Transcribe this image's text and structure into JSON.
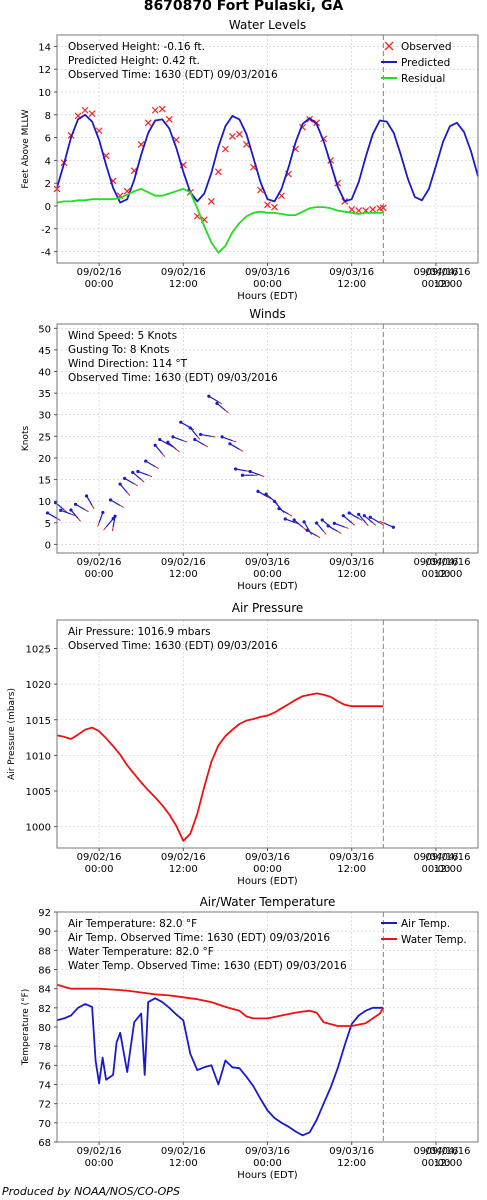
{
  "page_title": "8670870 Fort Pulaski, GA",
  "credit": "Produced by NOAA/NOS/CO-OPS",
  "chart_data": [
    {
      "type": "line",
      "title": "Water Levels",
      "xlabel": "Hours (EDT)",
      "ylabel": "Feet Above MLLW",
      "x_range_hours": [
        -6,
        54
      ],
      "x_ticks": [
        {
          "h": 0,
          "l1": "09/02/16",
          "l2": "00:00"
        },
        {
          "h": 12,
          "l1": "09/02/16",
          "l2": "12:00"
        },
        {
          "h": 24,
          "l1": "09/03/16",
          "l2": "00:00"
        },
        {
          "h": 36,
          "l1": "09/03/16",
          "l2": "12:00"
        },
        {
          "h": 48,
          "l1": "09/04/16",
          "l2": "00:00"
        },
        {
          "h": 60,
          "l1": "09/04/16",
          "l2": "12:00"
        }
      ],
      "now_hour": 40.5,
      "ylim": [
        -5,
        15
      ],
      "yticks": [
        -4,
        -2,
        0,
        2,
        4,
        6,
        8,
        10,
        12,
        14
      ],
      "grid": true,
      "legend_position": "top-right",
      "info_lines": [
        "Observed Height:  -0.16 ft.",
        "Predicted Height:   0.42 ft.",
        "Observed Time: 1630 (EDT) 09/03/2016"
      ],
      "series": [
        {
          "name": "Observed",
          "color": "#ff2020",
          "style": "x",
          "x": [
            -6,
            -5,
            -4,
            -3,
            -2,
            -1,
            0,
            1,
            2,
            3,
            4,
            5,
            6,
            7,
            8,
            9,
            10,
            11,
            12,
            13,
            14,
            15,
            16,
            17,
            18,
            19,
            20,
            21,
            22,
            23,
            24,
            25,
            26,
            27,
            28,
            29,
            30,
            31,
            32,
            33,
            34,
            35,
            36,
            37,
            38,
            39,
            40,
            40.5
          ],
          "y": [
            1.5,
            3.8,
            6.2,
            7.9,
            8.4,
            8.1,
            6.6,
            4.4,
            2.2,
            0.9,
            1.3,
            3.1,
            5.4,
            7.3,
            8.4,
            8.5,
            7.6,
            5.8,
            3.6,
            1.2,
            -0.9,
            -1.2,
            0.4,
            3.0,
            5.0,
            6.1,
            6.3,
            5.4,
            3.4,
            1.4,
            0.1,
            -0.1,
            0.9,
            2.8,
            5.0,
            6.9,
            7.6,
            7.3,
            5.9,
            4.0,
            2.0,
            0.4,
            -0.3,
            -0.4,
            -0.4,
            -0.3,
            -0.2,
            -0.16
          ]
        },
        {
          "name": "Predicted",
          "color": "#1a1acc",
          "style": "line",
          "x": [
            -6,
            -5,
            -4,
            -3,
            -2,
            -1,
            0,
            1,
            2,
            3,
            4,
            5,
            6,
            7,
            8,
            9,
            10,
            11,
            12,
            13,
            14,
            15,
            16,
            17,
            18,
            19,
            20,
            21,
            22,
            23,
            24,
            25,
            26,
            27,
            28,
            29,
            30,
            31,
            32,
            33,
            34,
            35,
            36,
            37,
            38,
            39,
            40,
            41,
            42,
            43,
            44,
            45,
            46,
            47,
            48,
            49,
            50,
            51,
            52,
            53,
            54
          ],
          "y": [
            1.6,
            3.7,
            6.0,
            7.6,
            8.0,
            7.4,
            5.8,
            3.6,
            1.6,
            0.3,
            0.6,
            2.3,
            4.5,
            6.4,
            7.5,
            7.6,
            6.8,
            5.1,
            3.0,
            1.2,
            0.4,
            1.1,
            2.9,
            5.2,
            7.0,
            7.9,
            7.6,
            6.3,
            4.2,
            2.1,
            0.6,
            0.4,
            1.5,
            3.4,
            5.6,
            7.2,
            7.7,
            7.2,
            5.7,
            3.7,
            1.7,
            0.4,
            0.6,
            2.1,
            4.3,
            6.3,
            7.5,
            7.4,
            6.4,
            4.5,
            2.4,
            0.8,
            0.5,
            1.5,
            3.5,
            5.6,
            7.0,
            7.3,
            6.5,
            4.8,
            2.6
          ]
        },
        {
          "name": "Residual",
          "color": "#22dd22",
          "style": "line",
          "x": [
            -6,
            -5,
            -4,
            -3,
            -2,
            -1,
            0,
            1,
            2,
            3,
            4,
            5,
            6,
            7,
            8,
            9,
            10,
            11,
            12,
            13,
            14,
            15,
            16,
            17,
            18,
            19,
            20,
            21,
            22,
            23,
            24,
            25,
            26,
            27,
            28,
            29,
            30,
            31,
            32,
            33,
            34,
            35,
            36,
            37,
            38,
            39,
            40,
            40.5
          ],
          "y": [
            0.3,
            0.4,
            0.4,
            0.5,
            0.5,
            0.6,
            0.6,
            0.6,
            0.6,
            0.7,
            1.0,
            1.3,
            1.5,
            1.2,
            0.9,
            0.9,
            1.1,
            1.3,
            1.5,
            1.2,
            -0.2,
            -1.8,
            -3.2,
            -4.1,
            -3.5,
            -2.3,
            -1.5,
            -0.9,
            -0.6,
            -0.5,
            -0.6,
            -0.6,
            -0.7,
            -0.8,
            -0.8,
            -0.5,
            -0.2,
            -0.1,
            -0.1,
            -0.2,
            -0.4,
            -0.5,
            -0.6,
            -0.7,
            -0.6,
            -0.6,
            -0.6,
            -0.58
          ]
        }
      ]
    },
    {
      "type": "scatter",
      "title": "Winds",
      "xlabel": "Hours (EDT)",
      "ylabel": "Knots",
      "x_range_hours": [
        -6,
        54
      ],
      "x_ticks": [
        {
          "h": 0,
          "l1": "09/02/16",
          "l2": "00:00"
        },
        {
          "h": 12,
          "l1": "09/02/16",
          "l2": "12:00"
        },
        {
          "h": 24,
          "l1": "09/03/16",
          "l2": "00:00"
        },
        {
          "h": 36,
          "l1": "09/03/16",
          "l2": "12:00"
        },
        {
          "h": 48,
          "l1": "09/04/16",
          "l2": "00:00"
        },
        {
          "h": 60,
          "l1": "09/04/16",
          "l2": "12:00"
        }
      ],
      "now_hour": 40.5,
      "ylim": [
        -2,
        51
      ],
      "yticks": [
        0,
        5,
        10,
        15,
        20,
        25,
        30,
        35,
        40,
        45,
        50
      ],
      "grid": true,
      "info_lines": [
        "Wind Speed: 5 Knots",
        "Gusting To: 8 Knots",
        "Wind Direction: 114 °T",
        "Observed Time: 1630 (EDT) 09/03/2016"
      ],
      "series": [
        {
          "name": "Wind",
          "color": "#1a1acc",
          "style": "arrow",
          "x": [
            -6,
            -5,
            -4,
            -3,
            -2,
            -1,
            0,
            1,
            2,
            3,
            4,
            5,
            6,
            7,
            8,
            9,
            10,
            11,
            12,
            13,
            14,
            15,
            16,
            17,
            18,
            19,
            20,
            21,
            22,
            23,
            24,
            25,
            26,
            27,
            28,
            29,
            30,
            31,
            32,
            33,
            34,
            35,
            36,
            37,
            38,
            39,
            40,
            40.5
          ],
          "y": [
            6,
            8,
            7,
            6,
            8,
            9,
            5,
            4,
            4,
            9,
            12,
            14,
            15,
            16,
            18,
            21,
            23,
            22,
            24,
            27,
            25,
            23,
            25,
            33,
            31,
            24,
            22,
            17,
            16,
            16,
            11,
            10,
            8,
            7,
            5,
            4,
            3,
            2,
            3,
            4,
            3,
            4,
            5,
            6,
            5,
            5,
            5,
            5
          ],
          "dir": [
            300,
            310,
            290,
            320,
            300,
            330,
            20,
            40,
            10,
            300,
            320,
            300,
            310,
            290,
            300,
            320,
            300,
            310,
            290,
            300,
            320,
            300,
            280,
            300,
            310,
            290,
            300,
            280,
            270,
            290,
            300,
            310,
            320,
            300,
            290,
            310,
            330,
            300,
            320,
            310,
            300,
            290,
            310,
            300,
            320,
            310,
            300,
            114
          ]
        }
      ]
    },
    {
      "type": "line",
      "title": "Air Pressure",
      "xlabel": "Hours (EDT)",
      "ylabel": "Air Pressure (mbars)",
      "x_range_hours": [
        -6,
        54
      ],
      "x_ticks": [
        {
          "h": 0,
          "l1": "09/02/16",
          "l2": "00:00"
        },
        {
          "h": 12,
          "l1": "09/02/16",
          "l2": "12:00"
        },
        {
          "h": 24,
          "l1": "09/03/16",
          "l2": "00:00"
        },
        {
          "h": 36,
          "l1": "09/03/16",
          "l2": "12:00"
        },
        {
          "h": 48,
          "l1": "09/04/16",
          "l2": "00:00"
        },
        {
          "h": 60,
          "l1": "09/04/16",
          "l2": "12:00"
        }
      ],
      "now_hour": 40.5,
      "ylim": [
        997,
        1029
      ],
      "yticks": [
        1000,
        1005,
        1010,
        1015,
        1020,
        1025
      ],
      "grid": true,
      "info_lines": [
        "Air Pressure: 1016.9 mbars",
        "Observed Time: 1630 (EDT) 09/03/2016"
      ],
      "series": [
        {
          "name": "Air Pressure",
          "color": "#ee1111",
          "style": "line",
          "x": [
            -6,
            -5,
            -4,
            -3,
            -2,
            -1,
            0,
            1,
            2,
            3,
            4,
            5,
            6,
            7,
            8,
            9,
            10,
            11,
            12,
            13,
            14,
            15,
            16,
            17,
            18,
            19,
            20,
            21,
            22,
            23,
            24,
            25,
            26,
            27,
            28,
            29,
            30,
            31,
            32,
            33,
            34,
            35,
            36,
            37,
            38,
            39,
            40,
            40.5
          ],
          "y": [
            1012.8,
            1012.6,
            1012.3,
            1012.9,
            1013.6,
            1013.9,
            1013.4,
            1012.4,
            1011.3,
            1010.1,
            1008.6,
            1007.4,
            1006.2,
            1005.1,
            1004.1,
            1003.0,
            1001.7,
            1000.1,
            998.0,
            999.0,
            1001.8,
            1005.6,
            1009.1,
            1011.4,
            1012.7,
            1013.6,
            1014.4,
            1014.9,
            1015.1,
            1015.4,
            1015.6,
            1016.0,
            1016.6,
            1017.2,
            1017.8,
            1018.3,
            1018.5,
            1018.7,
            1018.5,
            1018.2,
            1017.6,
            1017.1,
            1016.9,
            1016.9,
            1016.9,
            1016.9,
            1016.9,
            1016.9
          ]
        }
      ]
    },
    {
      "type": "line",
      "title": "Air/Water Temperature",
      "xlabel": "Hours (EDT)",
      "ylabel": "Temperature (°F)",
      "x_range_hours": [
        -6,
        54
      ],
      "x_ticks": [
        {
          "h": 0,
          "l1": "09/02/16",
          "l2": "00:00"
        },
        {
          "h": 12,
          "l1": "09/02/16",
          "l2": "12:00"
        },
        {
          "h": 24,
          "l1": "09/03/16",
          "l2": "00:00"
        },
        {
          "h": 36,
          "l1": "09/03/16",
          "l2": "12:00"
        },
        {
          "h": 48,
          "l1": "09/04/16",
          "l2": "00:00"
        },
        {
          "h": 60,
          "l1": "09/04/16",
          "l2": "12:00"
        }
      ],
      "now_hour": 40.5,
      "ylim": [
        68,
        92
      ],
      "yticks": [
        68,
        70,
        72,
        74,
        76,
        78,
        80,
        82,
        84,
        86,
        88,
        90,
        92
      ],
      "grid": true,
      "legend_position": "top-right",
      "info_lines": [
        "Air Temperature:  82.0 °F",
        "Air Temp. Observed Time: 1630 (EDT) 09/03/2016",
        "Water Temperature:  82.0 °F",
        "Water Temp. Observed Time: 1630 (EDT) 09/03/2016"
      ],
      "series": [
        {
          "name": "Air Temp.",
          "color": "#1a1acc",
          "style": "line",
          "x": [
            -6,
            -5,
            -4,
            -3,
            -2,
            -1,
            -0.5,
            0,
            0.5,
            1,
            2,
            2.5,
            3,
            4,
            5,
            6,
            6.5,
            7,
            8,
            9,
            10,
            11,
            12,
            13,
            14,
            15,
            16,
            17,
            18,
            19,
            20,
            21,
            22,
            23,
            24,
            25,
            26,
            27,
            28,
            29,
            30,
            31,
            32,
            33,
            34,
            35,
            36,
            37,
            38,
            39,
            40,
            40.5
          ],
          "y": [
            80.7,
            80.9,
            81.2,
            82.0,
            82.4,
            82.1,
            76.5,
            74.1,
            76.8,
            74.5,
            75.0,
            78.4,
            79.4,
            75.3,
            80.5,
            81.4,
            75.0,
            82.6,
            83.0,
            82.6,
            82.0,
            81.3,
            80.7,
            77.2,
            75.5,
            75.8,
            76.0,
            74.0,
            76.5,
            75.8,
            75.7,
            74.8,
            73.8,
            72.5,
            71.3,
            70.5,
            70.0,
            69.6,
            69.1,
            68.7,
            69.0,
            70.3,
            72.0,
            73.7,
            75.7,
            78.1,
            80.3,
            81.2,
            81.7,
            82.0,
            82.0,
            82.0
          ]
        },
        {
          "name": "Water Temp.",
          "color": "#ee1111",
          "style": "line",
          "x": [
            -6,
            -5,
            -4,
            -3,
            -2,
            0,
            2,
            4,
            6,
            8,
            10,
            12,
            14,
            16,
            18,
            20,
            21,
            22,
            24,
            26,
            28,
            30,
            31,
            32,
            34,
            36,
            38,
            40,
            40.5
          ],
          "y": [
            84.4,
            84.2,
            84.0,
            84.0,
            84.0,
            84.0,
            83.9,
            83.8,
            83.6,
            83.4,
            83.3,
            83.1,
            82.9,
            82.6,
            82.1,
            81.7,
            81.1,
            80.9,
            80.9,
            81.2,
            81.5,
            81.7,
            81.5,
            80.5,
            80.1,
            80.1,
            80.4,
            81.4,
            82.0
          ]
        }
      ]
    }
  ]
}
